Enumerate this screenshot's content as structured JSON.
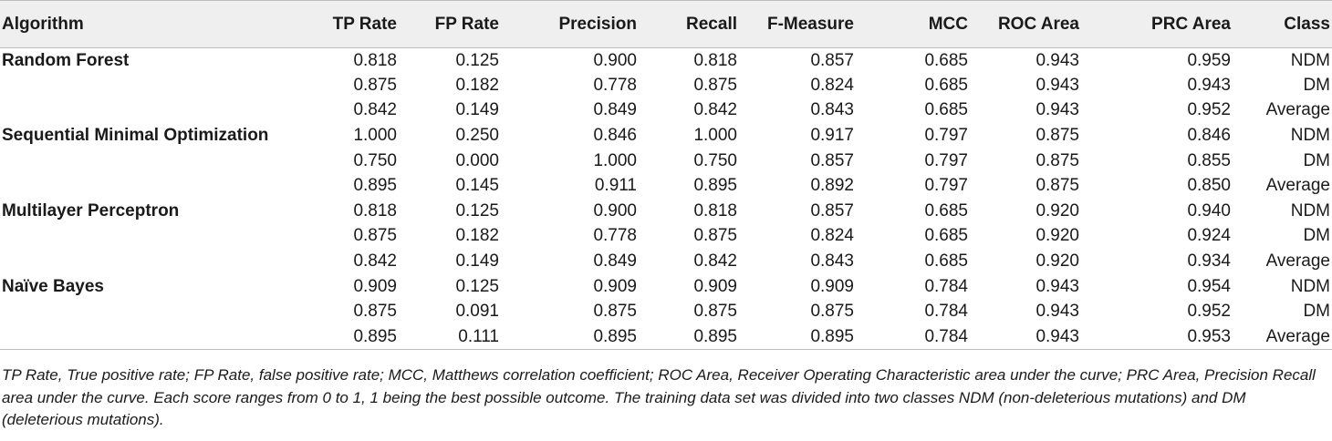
{
  "headers": [
    "Algorithm",
    "TP Rate",
    "FP Rate",
    "Precision",
    "Recall",
    "F-Measure",
    "MCC",
    "ROC Area",
    "PRC Area",
    "Class"
  ],
  "groups": [
    {
      "algorithm": "Random Forest",
      "rows": [
        {
          "tp": "0.818",
          "fp": "0.125",
          "precision": "0.900",
          "recall": "0.818",
          "f": "0.857",
          "mcc": "0.685",
          "roc": "0.943",
          "prc": "0.959",
          "cls": "NDM"
        },
        {
          "tp": "0.875",
          "fp": "0.182",
          "precision": "0.778",
          "recall": "0.875",
          "f": "0.824",
          "mcc": "0.685",
          "roc": "0.943",
          "prc": "0.943",
          "cls": "DM"
        },
        {
          "tp": "0.842",
          "fp": "0.149",
          "precision": "0.849",
          "recall": "0.842",
          "f": "0.843",
          "mcc": "0.685",
          "roc": "0.943",
          "prc": "0.952",
          "cls": "Average"
        }
      ]
    },
    {
      "algorithm": "Sequential Minimal Optimization",
      "rows": [
        {
          "tp": "1.000",
          "fp": "0.250",
          "precision": "0.846",
          "recall": "1.000",
          "f": "0.917",
          "mcc": "0.797",
          "roc": "0.875",
          "prc": "0.846",
          "cls": "NDM"
        },
        {
          "tp": "0.750",
          "fp": "0.000",
          "precision": "1.000",
          "recall": "0.750",
          "f": "0.857",
          "mcc": "0.797",
          "roc": "0.875",
          "prc": "0.855",
          "cls": "DM"
        },
        {
          "tp": "0.895",
          "fp": "0.145",
          "precision": "0.911",
          "recall": "0.895",
          "f": "0.892",
          "mcc": "0.797",
          "roc": "0.875",
          "prc": "0.850",
          "cls": "Average"
        }
      ]
    },
    {
      "algorithm": "Multilayer Perceptron",
      "rows": [
        {
          "tp": "0.818",
          "fp": "0.125",
          "precision": "0.900",
          "recall": "0.818",
          "f": "0.857",
          "mcc": "0.685",
          "roc": "0.920",
          "prc": "0.940",
          "cls": "NDM"
        },
        {
          "tp": "0.875",
          "fp": "0.182",
          "precision": "0.778",
          "recall": "0.875",
          "f": "0.824",
          "mcc": "0.685",
          "roc": "0.920",
          "prc": "0.924",
          "cls": "DM"
        },
        {
          "tp": "0.842",
          "fp": "0.149",
          "precision": "0.849",
          "recall": "0.842",
          "f": "0.843",
          "mcc": "0.685",
          "roc": "0.920",
          "prc": "0.934",
          "cls": "Average"
        }
      ]
    },
    {
      "algorithm": "Naïve Bayes",
      "rows": [
        {
          "tp": "0.909",
          "fp": "0.125",
          "precision": "0.909",
          "recall": "0.909",
          "f": "0.909",
          "mcc": "0.784",
          "roc": "0.943",
          "prc": "0.954",
          "cls": "NDM"
        },
        {
          "tp": "0.875",
          "fp": "0.091",
          "precision": "0.875",
          "recall": "0.875",
          "f": "0.875",
          "mcc": "0.784",
          "roc": "0.943",
          "prc": "0.952",
          "cls": "DM"
        },
        {
          "tp": "0.895",
          "fp": "0.111",
          "precision": "0.895",
          "recall": "0.895",
          "f": "0.895",
          "mcc": "0.784",
          "roc": "0.943",
          "prc": "0.953",
          "cls": "Average"
        }
      ]
    }
  ],
  "footnote": "TP Rate, True positive rate; FP Rate, false positive rate; MCC, Matthews correlation coefficient; ROC Area, Receiver Operating Characteristic area under the curve; PRC Area, Precision Recall area under the curve. Each score ranges from 0 to 1, 1 being the best possible outcome. The training data set was divided into two classes NDM (non-deleterious mutations) and DM (deleterious mutations)."
}
